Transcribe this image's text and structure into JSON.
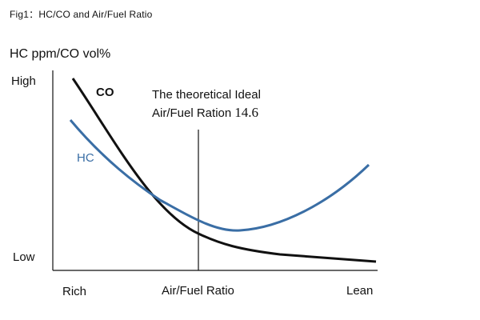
{
  "figure": {
    "title": "Fig1：HC/CO and Air/Fuel Ratio",
    "y_axis_title": "HC ppm/CO vol%",
    "y_high_label": "High",
    "y_low_label": "Low",
    "x_left_label": "Rich",
    "x_center_label": "Air/Fuel Ratio",
    "x_right_label": "Lean",
    "co_label": "CO",
    "hc_label": "HC",
    "ideal_line1": "The theoretical Ideal",
    "ideal_line2_text": "Air/Fuel Ration",
    "ideal_value": "14.6",
    "colors": {
      "co": "#111111",
      "hc": "#3a6ea5",
      "axis": "#111111"
    }
  }
}
